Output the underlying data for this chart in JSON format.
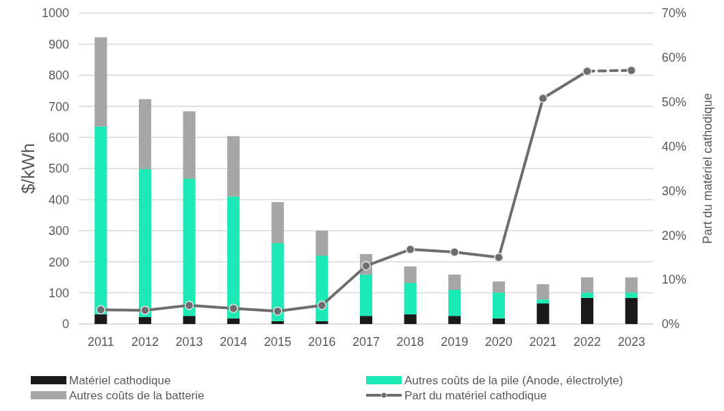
{
  "chart_data": {
    "type": "bar",
    "stacked": true,
    "ylabel": "$/kWh",
    "y2label": "Part du matériel cathodique",
    "categories": [
      "2011",
      "2012",
      "2013",
      "2014",
      "2015",
      "2016",
      "2017",
      "2018",
      "2019",
      "2020",
      "2021",
      "2022",
      "2023"
    ],
    "series": [
      {
        "name": "Matériel cathodique",
        "color": "#1a1a1a",
        "values": [
          31,
          22,
          26,
          18,
          9,
          9,
          26,
          31,
          26,
          18,
          66,
          84,
          84
        ]
      },
      {
        "name": "Autres coûts de la pile (Anode, électrolyte)",
        "color": "#1de9b6",
        "values": [
          604,
          476,
          441,
          392,
          251,
          211,
          133,
          101,
          84,
          83,
          13,
          17,
          17
        ]
      },
      {
        "name": "Autres coûts de la batterie",
        "color": "#a6a6a6",
        "values": [
          287,
          225,
          217,
          194,
          132,
          80,
          66,
          53,
          49,
          36,
          49,
          49,
          49
        ]
      },
      {
        "name": "Part du matériel cathodique",
        "type": "line",
        "axis": "y2",
        "color": "#6d6d6d",
        "marker": "circle",
        "line_style": "solid",
        "values": [
          3.2,
          3.1,
          4.2,
          3.5,
          2.9,
          4.2,
          13.1,
          16.8,
          16.2,
          15.0,
          50.8,
          56.9,
          null
        ]
      },
      {
        "type": "line",
        "axis": "y2",
        "color": "#6d6d6d",
        "marker": "circle",
        "line_style": "dashed",
        "values": [
          null,
          null,
          null,
          null,
          null,
          null,
          null,
          null,
          null,
          null,
          null,
          56.9,
          57.1
        ]
      }
    ],
    "ylim": [
      0,
      1000
    ],
    "yticks": [
      0,
      100,
      200,
      300,
      400,
      500,
      600,
      700,
      800,
      900,
      1000
    ],
    "y2lim": [
      0,
      70
    ],
    "y2ticks": [
      {
        "value": 0,
        "label": "0%"
      },
      {
        "value": 10,
        "label": "10%"
      },
      {
        "value": 20,
        "label": "20%"
      },
      {
        "value": 30,
        "label": "30%"
      },
      {
        "value": 40,
        "label": "40%"
      },
      {
        "value": 50,
        "label": "50%"
      },
      {
        "value": 60,
        "label": "60%"
      },
      {
        "value": 70,
        "label": "70%"
      }
    ],
    "grid": "y",
    "legend": "bottom"
  }
}
